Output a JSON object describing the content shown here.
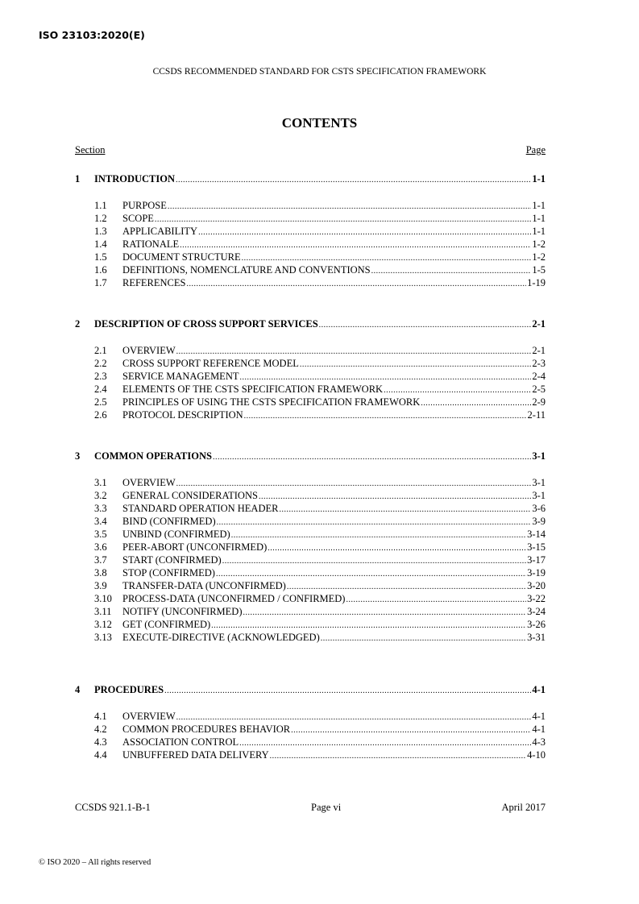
{
  "iso_header": "ISO 23103:2020(E)",
  "running_header": "CCSDS RECOMMENDED STANDARD FOR CSTS SPECIFICATION FRAMEWORK",
  "title": "CONTENTS",
  "col_section": "Section",
  "col_page": "Page",
  "toc": [
    {
      "num": "1",
      "title": "INTRODUCTION",
      "page": "1-1",
      "items": [
        {
          "num": "1.1",
          "title": "PURPOSE",
          "page": "1-1"
        },
        {
          "num": "1.2",
          "title": "SCOPE",
          "page": "1-1"
        },
        {
          "num": "1.3",
          "title": "APPLICABILITY",
          "page": "1-1"
        },
        {
          "num": "1.4",
          "title": "RATIONALE",
          "page": "1-2"
        },
        {
          "num": "1.5",
          "title": "DOCUMENT STRUCTURE",
          "page": "1-2"
        },
        {
          "num": "1.6",
          "title": "DEFINITIONS, NOMENCLATURE AND CONVENTIONS",
          "page": "1-5"
        },
        {
          "num": "1.7",
          "title": "REFERENCES",
          "page": "1-19"
        }
      ]
    },
    {
      "num": "2",
      "title": "DESCRIPTION OF CROSS SUPPORT SERVICES",
      "page": "2-1",
      "items": [
        {
          "num": "2.1",
          "title": "OVERVIEW",
          "page": "2-1"
        },
        {
          "num": "2.2",
          "title": "CROSS SUPPORT REFERENCE MODEL",
          "page": "2-3"
        },
        {
          "num": "2.3",
          "title": "SERVICE MANAGEMENT",
          "page": "2-4"
        },
        {
          "num": "2.4",
          "title": "ELEMENTS OF THE CSTS SPECIFICATION FRAMEWORK",
          "page": "2-5"
        },
        {
          "num": "2.5",
          "title": "PRINCIPLES OF USING THE CSTS SPECIFICATION FRAMEWORK",
          "page": "2-9"
        },
        {
          "num": "2.6",
          "title": "PROTOCOL DESCRIPTION",
          "page": "2-11"
        }
      ]
    },
    {
      "num": "3",
      "title": "COMMON OPERATIONS",
      "page": "3-1",
      "items": [
        {
          "num": "3.1",
          "title": "OVERVIEW",
          "page": "3-1"
        },
        {
          "num": "3.2",
          "title": "GENERAL CONSIDERATIONS",
          "page": "3-1"
        },
        {
          "num": "3.3",
          "title": "STANDARD OPERATION HEADER",
          "page": "3-6"
        },
        {
          "num": "3.4",
          "title": "BIND (CONFIRMED)",
          "page": "3-9"
        },
        {
          "num": "3.5",
          "title": "UNBIND (CONFIRMED)",
          "page": "3-14"
        },
        {
          "num": "3.6",
          "title": "PEER-ABORT (UNCONFIRMED)",
          "page": "3-15"
        },
        {
          "num": "3.7",
          "title": "START (CONFIRMED)",
          "page": "3-17"
        },
        {
          "num": "3.8",
          "title": "STOP (CONFIRMED)",
          "page": "3-19"
        },
        {
          "num": "3.9",
          "title": "TRANSFER-DATA (UNCONFIRMED)",
          "page": "3-20"
        },
        {
          "num": "3.10",
          "title": "PROCESS-DATA (UNCONFIRMED / CONFIRMED)",
          "page": "3-22"
        },
        {
          "num": "3.11",
          "title": "NOTIFY (UNCONFIRMED)",
          "page": "3-24"
        },
        {
          "num": "3.12",
          "title": "GET (CONFIRMED)",
          "page": "3-26"
        },
        {
          "num": "3.13",
          "title": "EXECUTE-DIRECTIVE (ACKNOWLEDGED)",
          "page": "3-31"
        }
      ]
    },
    {
      "num": "4",
      "title": "PROCEDURES",
      "page": "4-1",
      "items": [
        {
          "num": "4.1",
          "title": "OVERVIEW",
          "page": "4-1"
        },
        {
          "num": "4.2",
          "title": "COMMON PROCEDURES BEHAVIOR",
          "page": "4-1"
        },
        {
          "num": "4.3",
          "title": "ASSOCIATION CONTROL",
          "page": "4-3"
        },
        {
          "num": "4.4",
          "title": "UNBUFFERED DATA DELIVERY",
          "page": "4-10"
        }
      ]
    }
  ],
  "footer": {
    "doc_id": "CCSDS 921.1-B-1",
    "page": "Page vi",
    "date": "April 2017"
  },
  "copyright": "© ISO 2020 – All rights reserved"
}
